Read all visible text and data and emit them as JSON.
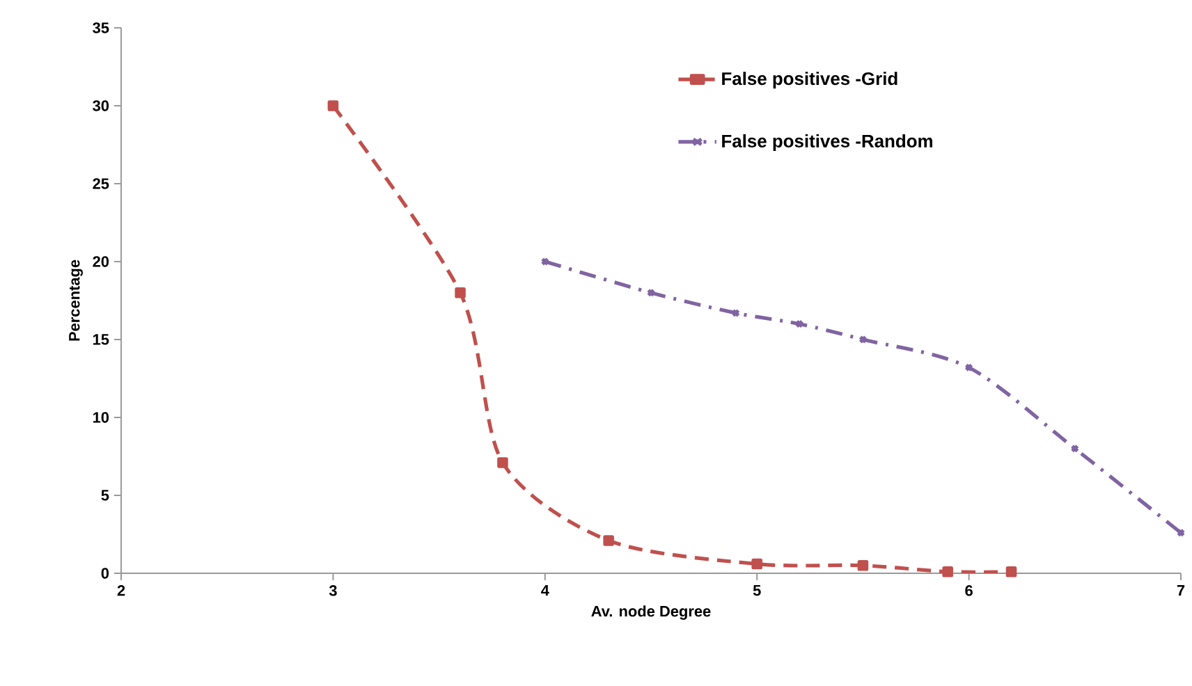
{
  "chart_data": {
    "type": "line",
    "xlabel": "Av. node Degree",
    "ylabel": "Percentage",
    "xlim": [
      2,
      7
    ],
    "ylim": [
      0,
      35
    ],
    "xticks": [
      2,
      3,
      4,
      5,
      6,
      7
    ],
    "yticks": [
      0,
      5,
      10,
      15,
      20,
      25,
      30,
      35
    ],
    "grid": false,
    "legend": "top right",
    "series": [
      {
        "name": "False positives -Grid",
        "color": "#c0504d",
        "marker": "square",
        "line_style": "dashed",
        "x": [
          3,
          3.6,
          3.8,
          4.3,
          5,
          5.5,
          5.9,
          6.2
        ],
        "values": [
          30,
          18,
          7.1,
          2.1,
          0.6,
          0.5,
          0.1,
          0.1
        ]
      },
      {
        "name": "False positives -Random",
        "color": "#8064a2",
        "marker": "cross",
        "line_style": "dashdot",
        "x": [
          4,
          4.5,
          4.9,
          5.2,
          5.5,
          6,
          6.5,
          7
        ],
        "values": [
          20,
          18,
          16.7,
          16,
          15,
          13.2,
          8,
          2.6
        ]
      }
    ]
  }
}
